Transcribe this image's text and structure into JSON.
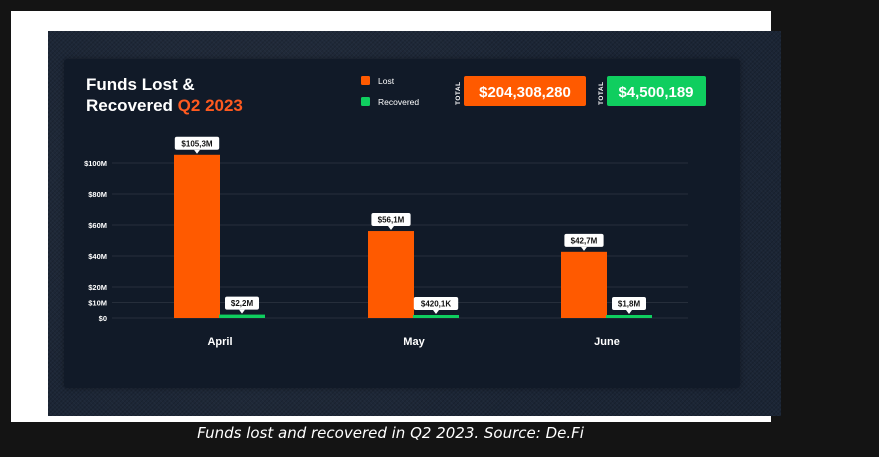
{
  "caption": "Funds lost and recovered in Q2 2023. Source: De.Fi",
  "colors": {
    "lost": "#ff5a00",
    "recovered": "#0fce5f",
    "background": "#111a28"
  },
  "totals": {
    "word": "TOTAL",
    "lost": "$204,308,280",
    "recovered": "$4,500,189"
  },
  "chart_data": {
    "type": "bar",
    "title": "Funds Lost & Recovered Q2 2023",
    "title_parts": {
      "line1": "Funds Lost &",
      "line2": "Recovered ",
      "accent": "Q2 2023"
    },
    "categories": [
      "April",
      "May",
      "June"
    ],
    "series": [
      {
        "name": "Lost",
        "values": [
          105300000,
          56100000,
          42700000
        ],
        "labels": [
          "$105,3M",
          "$56,1M",
          "$42,7M"
        ]
      },
      {
        "name": "Recovered",
        "values": [
          2200000,
          420100,
          1800000
        ],
        "labels": [
          "$2,2M",
          "$420,1K",
          "$1,8M"
        ]
      }
    ],
    "yticks": [
      0,
      10000000,
      20000000,
      40000000,
      60000000,
      80000000,
      100000000
    ],
    "ytick_labels": [
      "$0",
      "$10M",
      "$20M",
      "$40M",
      "$60M",
      "$80M",
      "$100M"
    ],
    "ylim": [
      0,
      120000000
    ],
    "grid": true,
    "legend": "top-center"
  }
}
